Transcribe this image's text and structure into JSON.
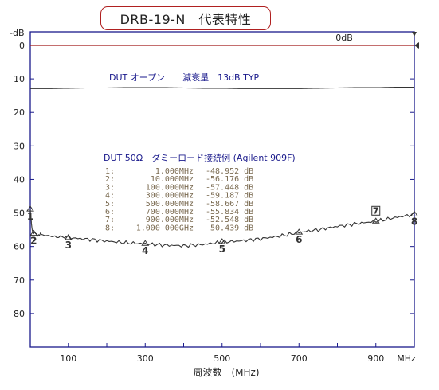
{
  "title": "DRB-19-N　代表特性",
  "chart_data": {
    "type": "line",
    "y_unit": "-dB",
    "y_ticks": [
      0,
      10,
      20,
      30,
      40,
      50,
      60,
      70,
      80
    ],
    "ylim": [
      0,
      90
    ],
    "y_inverted": true,
    "x_ticks": [
      "100",
      "300",
      "500",
      "700",
      "900"
    ],
    "x_tick_values": [
      100,
      300,
      500,
      700,
      900
    ],
    "xlim": [
      1,
      1000
    ],
    "x_unit": "MHz",
    "xlabel": "周波数　(MHz)",
    "reference": {
      "label": "0dB",
      "value": 0,
      "color": "#a01818"
    },
    "annotation_open": "DUT オープン　　減衰量　13dB TYP",
    "annotation_dummy": "DUT  50Ω　ダミーロード接続例 (Agilent 909F)",
    "series": [
      {
        "color": "#333333",
        "points": [
          [
            1,
            12.9
          ],
          [
            50,
            12.9
          ],
          [
            100,
            12.8
          ],
          [
            150,
            12.7
          ],
          [
            200,
            12.7
          ],
          [
            250,
            12.6
          ],
          [
            300,
            12.6
          ],
          [
            350,
            12.6
          ],
          [
            400,
            12.7
          ],
          [
            450,
            12.8
          ],
          [
            500,
            12.8
          ],
          [
            550,
            12.9
          ],
          [
            600,
            12.9
          ],
          [
            650,
            12.9
          ],
          [
            700,
            12.9
          ],
          [
            750,
            12.8
          ],
          [
            800,
            12.7
          ],
          [
            850,
            12.6
          ],
          [
            900,
            12.6
          ],
          [
            950,
            12.5
          ],
          [
            1000,
            12.5
          ]
        ]
      },
      {
        "color": "#333333",
        "points": [
          [
            1,
            49.0
          ],
          [
            4,
            53.0
          ],
          [
            8,
            56.0
          ],
          [
            10,
            56.2
          ],
          [
            30,
            56.5
          ],
          [
            60,
            57.0
          ],
          [
            100,
            57.4
          ],
          [
            150,
            57.8
          ],
          [
            200,
            58.4
          ],
          [
            250,
            58.9
          ],
          [
            300,
            59.2
          ],
          [
            350,
            59.6
          ],
          [
            400,
            59.8
          ],
          [
            450,
            59.4
          ],
          [
            500,
            58.7
          ],
          [
            550,
            58.3
          ],
          [
            600,
            57.7
          ],
          [
            650,
            56.9
          ],
          [
            700,
            55.8
          ],
          [
            750,
            55.0
          ],
          [
            800,
            54.0
          ],
          [
            850,
            53.2
          ],
          [
            900,
            52.5
          ],
          [
            950,
            51.4
          ],
          [
            1000,
            50.4
          ]
        ]
      }
    ],
    "markers": [
      {
        "id": "1",
        "freq": "1.000MHz",
        "value": "-48.952 dB",
        "x": 1,
        "y": 48.952
      },
      {
        "id": "2",
        "freq": "10.000MHz",
        "value": "-56.176 dB",
        "x": 10,
        "y": 56.176
      },
      {
        "id": "3",
        "freq": "100.000MHz",
        "value": "-57.448 dB",
        "x": 100,
        "y": 57.448
      },
      {
        "id": "4",
        "freq": "300.000MHz",
        "value": "-59.187 dB",
        "x": 300,
        "y": 59.187
      },
      {
        "id": "5",
        "freq": "500.000MHz",
        "value": "-58.667 dB",
        "x": 500,
        "y": 58.667
      },
      {
        "id": "6",
        "freq": "700.000MHz",
        "value": "-55.834 dB",
        "x": 700,
        "y": 55.834
      },
      {
        "id": "7",
        "freq": "900.000MHz",
        "value": "-52.548 dB",
        "x": 900,
        "y": 52.548
      },
      {
        "id": "8",
        "freq": "1.000 000GHz",
        "value": "-50.439 dB",
        "x": 1000,
        "y": 50.439
      }
    ],
    "grid": false
  }
}
